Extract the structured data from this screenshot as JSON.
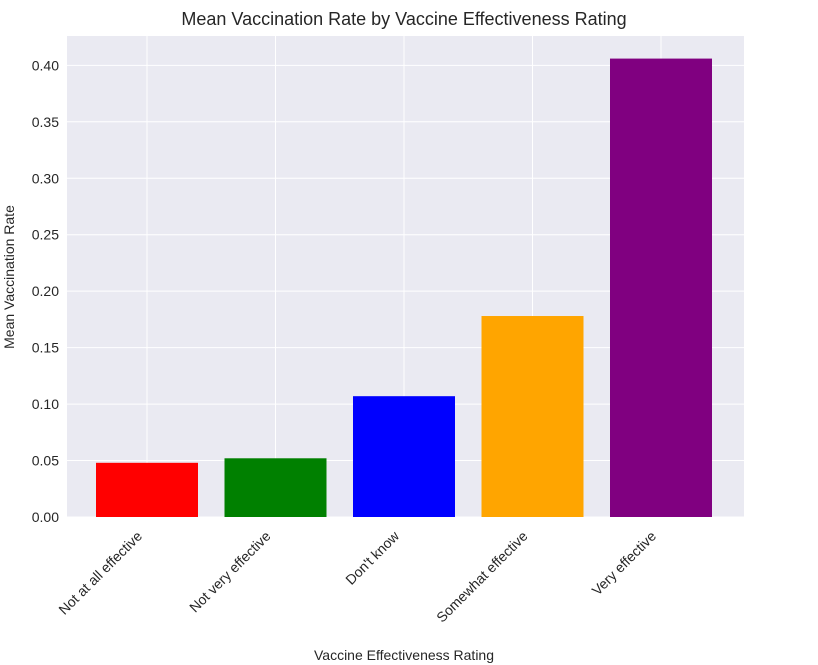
{
  "chart_data": {
    "type": "bar",
    "title": "Mean Vaccination Rate by Vaccine Effectiveness Rating",
    "xlabel": "Vaccine Effectiveness Rating",
    "ylabel": "Mean Vaccination Rate",
    "categories": [
      "Not at all effective",
      "Not very effective",
      "Don't know",
      "Somewhat effective",
      "Very effective"
    ],
    "values": [
      0.048,
      0.052,
      0.107,
      0.178,
      0.406
    ],
    "colors": [
      "#ff0000",
      "#008000",
      "#0000ff",
      "#ffa500",
      "#800080"
    ],
    "ylim": [
      0,
      0.426
    ],
    "yticks": [
      "0.00",
      "0.05",
      "0.10",
      "0.15",
      "0.20",
      "0.25",
      "0.30",
      "0.35",
      "0.40"
    ],
    "grid": true,
    "background": "#eaeaf2"
  }
}
